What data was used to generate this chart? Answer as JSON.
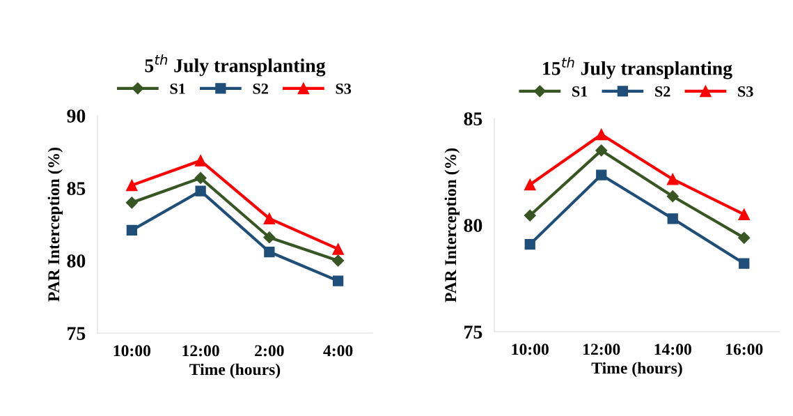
{
  "chart_data": [
    {
      "type": "line",
      "title": "5$^{th}$ July transplanting",
      "xlabel": "Time (hours)",
      "ylabel": "PAR Interception (%)",
      "categories": [
        "10:00",
        "12:00",
        "2:00",
        "4:00"
      ],
      "ylim": [
        75,
        90
      ],
      "yticks": [
        75,
        80,
        85,
        90
      ],
      "grid": false,
      "legend": "top",
      "line_style": "solid",
      "series": [
        {
          "name": "S1",
          "color": "#375623",
          "marker": "diamond",
          "values": [
            84.0,
            85.7,
            81.6,
            80.0
          ]
        },
        {
          "name": "S2",
          "color": "#1f4e79",
          "marker": "square",
          "values": [
            82.1,
            84.8,
            80.6,
            78.6
          ]
        },
        {
          "name": "S3",
          "color": "#ff0000",
          "marker": "triangle",
          "values": [
            85.2,
            86.9,
            82.9,
            80.8
          ]
        }
      ]
    },
    {
      "type": "line",
      "title": "15$^{th}$ July transplanting",
      "xlabel": "Time (hours)",
      "ylabel": "PAR Interception (%)",
      "categories": [
        "10:00",
        "12:00",
        "14:00",
        "16:00"
      ],
      "ylim": [
        75,
        85
      ],
      "yticks": [
        75,
        80,
        85
      ],
      "grid": false,
      "legend": "top",
      "line_style": "solid",
      "series": [
        {
          "name": "S1",
          "color": "#375623",
          "marker": "diamond",
          "values": [
            80.45,
            83.5,
            81.35,
            79.4
          ]
        },
        {
          "name": "S2",
          "color": "#1f4e79",
          "marker": "square",
          "values": [
            79.1,
            82.35,
            80.3,
            78.2
          ]
        },
        {
          "name": "S3",
          "color": "#ff0000",
          "marker": "triangle",
          "values": [
            81.9,
            84.25,
            82.15,
            80.5
          ]
        }
      ]
    }
  ]
}
